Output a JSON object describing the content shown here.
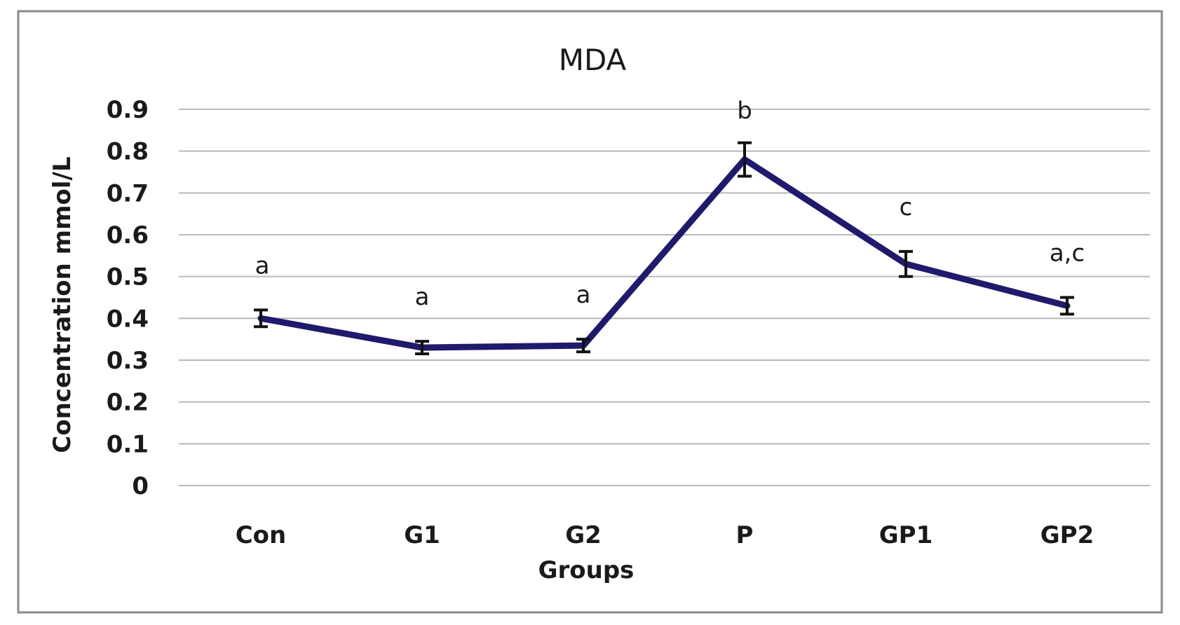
{
  "chart_data": {
    "type": "line",
    "title": "MDA",
    "xlabel": "Groups",
    "ylabel": "Concentration mmol/L",
    "categories": [
      "Con",
      "G1",
      "G2",
      "P",
      "GP1",
      "GP2"
    ],
    "series": [
      {
        "values": [
          0.4,
          0.33,
          0.335,
          0.78,
          0.53,
          0.43
        ],
        "errors": [
          0.02,
          0.015,
          0.015,
          0.04,
          0.03,
          0.02
        ],
        "color": "#1f1a6b"
      }
    ],
    "annotations": [
      "a",
      "a",
      "a",
      "b",
      "c",
      "a,c"
    ],
    "ylim": [
      0,
      0.9
    ],
    "yticks": [
      "0",
      "0.1",
      "0.2",
      "0.3",
      "0.4",
      "0.5",
      "0.6",
      "0.7",
      "0.8",
      "0.9"
    ],
    "grid": true,
    "legend": "none"
  },
  "colors": {
    "line": "#1f1a6b",
    "gridline": "#b8b8b8",
    "frame": "#8a8a8a",
    "error_bar": "#111111"
  }
}
